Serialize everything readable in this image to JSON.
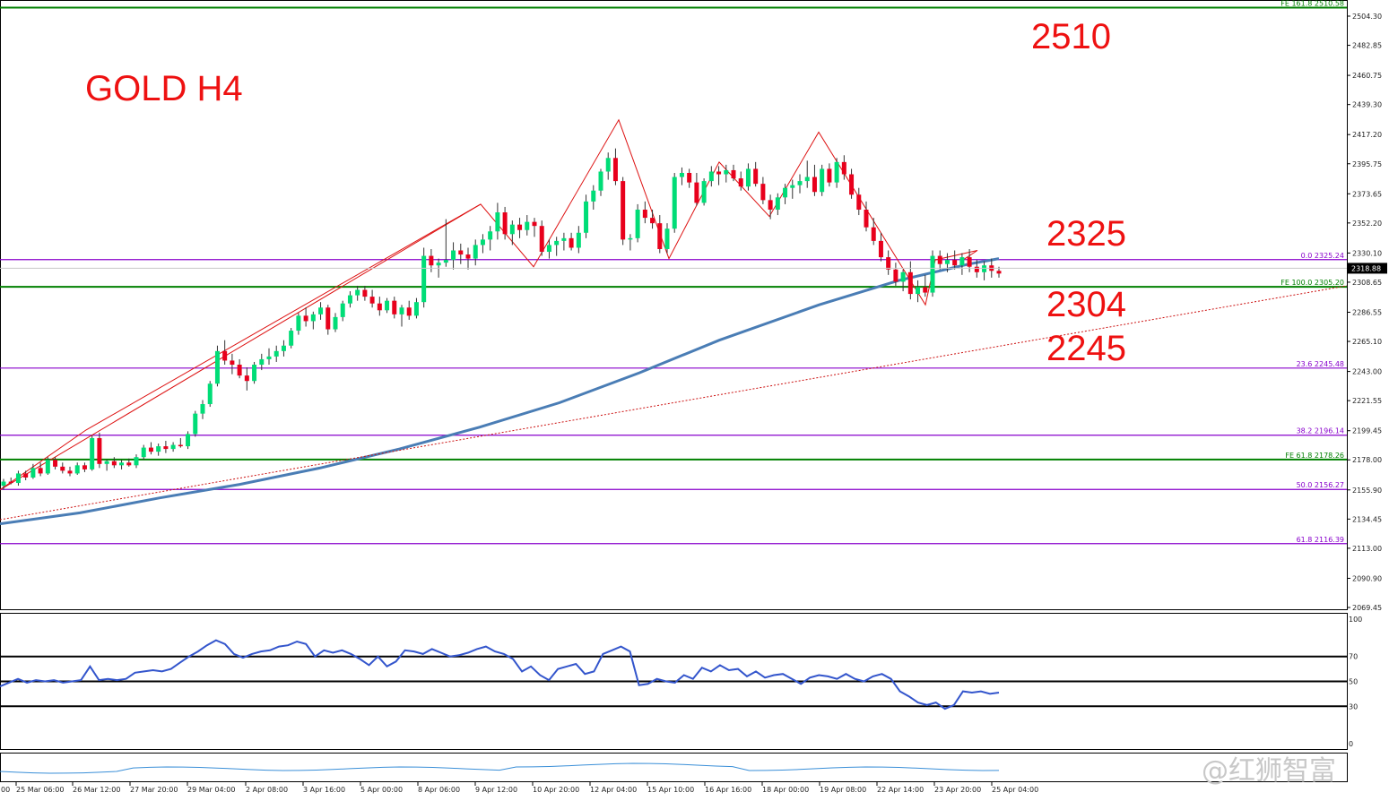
{
  "chart_data": {
    "type": "candlestick",
    "symbol_title": "GOLD H4",
    "annotations": [
      "2510",
      "2325",
      "2304",
      "2245"
    ],
    "current_price": "2318.88",
    "y_ticks": [
      "2504.30",
      "2482.85",
      "2460.75",
      "2439.30",
      "2417.20",
      "2395.75",
      "2373.65",
      "2352.20",
      "2330.10",
      "2308.65",
      "2286.55",
      "2265.10",
      "2243.00",
      "2221.55",
      "2199.45",
      "2178.00",
      "2155.90",
      "2134.45",
      "2113.00",
      "2090.90",
      "2069.45"
    ],
    "x_labels": [
      "25 Mar 06:00",
      "26 Mar 12:00",
      "27 Mar 20:00",
      "29 Mar 04:00",
      "2 Apr 08:00",
      "3 Apr 16:00",
      "5 Apr 00:00",
      "8 Apr 06:00",
      "9 Apr 12:00",
      "10 Apr 20:00",
      "12 Apr 04:00",
      "15 Apr 10:00",
      "16 Apr 16:00",
      "18 Apr 00:00",
      "19 Apr 08:00",
      "22 Apr 14:00",
      "23 Apr 20:00",
      "25 Apr 04:00"
    ],
    "x_label_prefix": "00",
    "price_range": [
      2060,
      2512
    ],
    "levels": [
      {
        "label": "FE 161.8 2510.58",
        "value": 2510.58,
        "color": "#008000",
        "kind": "fe"
      },
      {
        "label": "0.0 2325.24",
        "value": 2325.24,
        "color": "#8800cc",
        "kind": "fib"
      },
      {
        "label": "FE 100.0 2305.20",
        "value": 2305.2,
        "color": "#008000",
        "kind": "fe"
      },
      {
        "label": "23.6 2245.48",
        "value": 2245.48,
        "color": "#8800cc",
        "kind": "fib"
      },
      {
        "label": "38.2 2196.14",
        "value": 2196.14,
        "color": "#8800cc",
        "kind": "fib"
      },
      {
        "label": "FE 61.8 2178.26",
        "value": 2178.26,
        "color": "#008000",
        "kind": "fe"
      },
      {
        "label": "50.0 2156.27",
        "value": 2156.27,
        "color": "#8800cc",
        "kind": "fib"
      },
      {
        "label": "61.8 2116.39",
        "value": 2116.39,
        "color": "#8800cc",
        "kind": "fib"
      }
    ],
    "candles": [
      [
        2159,
        2164,
        2156,
        2162
      ],
      [
        2162,
        2165,
        2160,
        2161
      ],
      [
        2161,
        2170,
        2159,
        2168
      ],
      [
        2168,
        2170,
        2163,
        2165
      ],
      [
        2165,
        2175,
        2164,
        2172
      ],
      [
        2172,
        2176,
        2166,
        2168
      ],
      [
        2168,
        2180,
        2167,
        2178
      ],
      [
        2178,
        2180,
        2171,
        2173
      ],
      [
        2173,
        2176,
        2168,
        2170
      ],
      [
        2170,
        2173,
        2166,
        2168
      ],
      [
        2168,
        2176,
        2167,
        2174
      ],
      [
        2174,
        2176,
        2169,
        2171
      ],
      [
        2171,
        2196,
        2170,
        2194
      ],
      [
        2194,
        2198,
        2172,
        2175
      ],
      [
        2175,
        2178,
        2170,
        2177
      ],
      [
        2177,
        2180,
        2172,
        2174
      ],
      [
        2174,
        2178,
        2171,
        2176
      ],
      [
        2176,
        2179,
        2173,
        2174
      ],
      [
        2174,
        2182,
        2172,
        2180
      ],
      [
        2180,
        2189,
        2178,
        2187
      ],
      [
        2187,
        2191,
        2182,
        2184
      ],
      [
        2184,
        2190,
        2181,
        2188
      ],
      [
        2188,
        2192,
        2183,
        2186
      ],
      [
        2186,
        2191,
        2184,
        2189
      ],
      [
        2189,
        2194,
        2187,
        2188
      ],
      [
        2188,
        2199,
        2186,
        2197
      ],
      [
        2197,
        2214,
        2195,
        2212
      ],
      [
        2212,
        2222,
        2208,
        2219
      ],
      [
        2219,
        2236,
        2217,
        2234
      ],
      [
        2234,
        2262,
        2232,
        2258
      ],
      [
        2258,
        2266,
        2248,
        2251
      ],
      [
        2251,
        2256,
        2241,
        2248
      ],
      [
        2248,
        2252,
        2238,
        2240
      ],
      [
        2240,
        2246,
        2229,
        2236
      ],
      [
        2236,
        2250,
        2234,
        2248
      ],
      [
        2248,
        2256,
        2244,
        2252
      ],
      [
        2252,
        2260,
        2248,
        2254
      ],
      [
        2254,
        2262,
        2250,
        2258
      ],
      [
        2258,
        2266,
        2254,
        2262
      ],
      [
        2262,
        2275,
        2260,
        2273
      ],
      [
        2273,
        2286,
        2270,
        2284
      ],
      [
        2284,
        2290,
        2276,
        2280
      ],
      [
        2280,
        2287,
        2274,
        2285
      ],
      [
        2285,
        2294,
        2281,
        2290
      ],
      [
        2290,
        2292,
        2270,
        2274
      ],
      [
        2274,
        2286,
        2272,
        2283
      ],
      [
        2283,
        2295,
        2280,
        2293
      ],
      [
        2293,
        2302,
        2290,
        2299
      ],
      [
        2299,
        2306,
        2295,
        2303
      ],
      [
        2303,
        2306,
        2295,
        2298
      ],
      [
        2298,
        2303,
        2290,
        2293
      ],
      [
        2293,
        2298,
        2284,
        2288
      ],
      [
        2288,
        2297,
        2286,
        2295
      ],
      [
        2295,
        2298,
        2282,
        2285
      ],
      [
        2285,
        2292,
        2276,
        2290
      ],
      [
        2290,
        2295,
        2281,
        2284
      ],
      [
        2284,
        2297,
        2282,
        2294
      ],
      [
        2294,
        2334,
        2290,
        2328
      ],
      [
        2328,
        2333,
        2316,
        2321
      ],
      [
        2321,
        2326,
        2312,
        2323
      ],
      [
        2323,
        2355,
        2320,
        2325
      ],
      [
        2325,
        2338,
        2318,
        2332
      ],
      [
        2332,
        2337,
        2322,
        2329
      ],
      [
        2329,
        2334,
        2318,
        2326
      ],
      [
        2326,
        2340,
        2321,
        2336
      ],
      [
        2336,
        2344,
        2330,
        2340
      ],
      [
        2340,
        2350,
        2332,
        2346
      ],
      [
        2346,
        2367,
        2340,
        2360
      ],
      [
        2360,
        2364,
        2340,
        2344
      ],
      [
        2344,
        2354,
        2336,
        2351
      ],
      [
        2351,
        2356,
        2341,
        2347
      ],
      [
        2347,
        2358,
        2343,
        2353
      ],
      [
        2353,
        2356,
        2342,
        2350
      ],
      [
        2350,
        2354,
        2328,
        2331
      ],
      [
        2331,
        2340,
        2326,
        2336
      ],
      [
        2336,
        2342,
        2328,
        2339
      ],
      [
        2339,
        2345,
        2332,
        2341
      ],
      [
        2341,
        2345,
        2332,
        2334
      ],
      [
        2334,
        2350,
        2330,
        2345
      ],
      [
        2345,
        2373,
        2341,
        2368
      ],
      [
        2368,
        2380,
        2362,
        2376
      ],
      [
        2376,
        2392,
        2372,
        2390
      ],
      [
        2390,
        2404,
        2384,
        2400
      ],
      [
        2400,
        2407,
        2380,
        2383
      ],
      [
        2383,
        2386,
        2336,
        2340
      ],
      [
        2340,
        2344,
        2332,
        2341
      ],
      [
        2341,
        2366,
        2338,
        2362
      ],
      [
        2362,
        2368,
        2352,
        2356
      ],
      [
        2356,
        2362,
        2348,
        2352
      ],
      [
        2352,
        2358,
        2330,
        2333
      ],
      [
        2333,
        2352,
        2330,
        2348
      ],
      [
        2348,
        2389,
        2345,
        2386
      ],
      [
        2386,
        2393,
        2380,
        2389
      ],
      [
        2389,
        2392,
        2378,
        2382
      ],
      [
        2382,
        2389,
        2365,
        2367
      ],
      [
        2367,
        2385,
        2365,
        2383
      ],
      [
        2383,
        2394,
        2379,
        2390
      ],
      [
        2390,
        2394,
        2380,
        2388
      ],
      [
        2388,
        2395,
        2382,
        2391
      ],
      [
        2391,
        2395,
        2383,
        2385
      ],
      [
        2385,
        2390,
        2376,
        2379
      ],
      [
        2379,
        2396,
        2376,
        2392
      ],
      [
        2392,
        2397,
        2379,
        2381
      ],
      [
        2381,
        2386,
        2366,
        2369
      ],
      [
        2369,
        2373,
        2355,
        2362
      ],
      [
        2362,
        2374,
        2358,
        2371
      ],
      [
        2371,
        2381,
        2366,
        2378
      ],
      [
        2378,
        2384,
        2370,
        2380
      ],
      [
        2380,
        2388,
        2374,
        2383
      ],
      [
        2383,
        2398,
        2378,
        2386
      ],
      [
        2386,
        2395,
        2372,
        2375
      ],
      [
        2375,
        2395,
        2372,
        2392
      ],
      [
        2392,
        2396,
        2379,
        2382
      ],
      [
        2382,
        2400,
        2378,
        2397
      ],
      [
        2397,
        2402,
        2384,
        2388
      ],
      [
        2388,
        2392,
        2370,
        2373
      ],
      [
        2373,
        2378,
        2358,
        2362
      ],
      [
        2362,
        2368,
        2346,
        2349
      ],
      [
        2349,
        2356,
        2336,
        2339
      ],
      [
        2339,
        2345,
        2324,
        2327
      ],
      [
        2327,
        2332,
        2314,
        2318
      ],
      [
        2318,
        2323,
        2306,
        2309
      ],
      [
        2309,
        2318,
        2302,
        2316
      ],
      [
        2316,
        2324,
        2296,
        2300
      ],
      [
        2300,
        2310,
        2294,
        2305
      ],
      [
        2305,
        2314,
        2298,
        2301
      ],
      [
        2301,
        2332,
        2298,
        2328
      ],
      [
        2328,
        2332,
        2318,
        2322
      ],
      [
        2322,
        2330,
        2316,
        2325
      ],
      [
        2325,
        2332,
        2318,
        2321
      ],
      [
        2321,
        2330,
        2314,
        2327
      ],
      [
        2327,
        2333,
        2316,
        2320
      ],
      [
        2320,
        2325,
        2312,
        2316
      ],
      [
        2316,
        2324,
        2310,
        2321
      ],
      [
        2321,
        2326,
        2312,
        2317
      ],
      [
        2317,
        2320,
        2312,
        2315
      ]
    ],
    "ma_points": [
      [
        2131,
        0
      ],
      [
        2139,
        0.08
      ],
      [
        2150,
        0.16
      ],
      [
        2160,
        0.24
      ],
      [
        2172,
        0.32
      ],
      [
        2186,
        0.4
      ],
      [
        2202,
        0.48
      ],
      [
        2220,
        0.56
      ],
      [
        2242,
        0.64
      ],
      [
        2266,
        0.72
      ],
      [
        2292,
        0.82
      ],
      [
        2310,
        0.9
      ],
      [
        2322,
        0.97
      ],
      [
        2326,
        1.0
      ]
    ],
    "rsi": {
      "levels": [
        70,
        50,
        30
      ],
      "scale_labels": [
        "100",
        "70",
        "50",
        "30",
        "0"
      ],
      "values": [
        46,
        49,
        52,
        49,
        51,
        50,
        51,
        49,
        50,
        51,
        62,
        51,
        52,
        51,
        52,
        57,
        58,
        59,
        58,
        60,
        65,
        70,
        74,
        79,
        83,
        80,
        72,
        69,
        72,
        74,
        75,
        78,
        79,
        82,
        80,
        70,
        75,
        73,
        75,
        72,
        68,
        63,
        70,
        62,
        66,
        75,
        74,
        72,
        76,
        73,
        70,
        71,
        73,
        76,
        78,
        74,
        72,
        68,
        58,
        62,
        55,
        51,
        60,
        62,
        64,
        56,
        58,
        72,
        75,
        78,
        74,
        47,
        48,
        52,
        50,
        49,
        55,
        52,
        61,
        58,
        63,
        59,
        60,
        54,
        58,
        53,
        55,
        56,
        52,
        48,
        53,
        55,
        54,
        52,
        56,
        52,
        50,
        54,
        56,
        52,
        42,
        38,
        33,
        31,
        33,
        28,
        31,
        42,
        41,
        42,
        40,
        41
      ]
    }
  }
}
